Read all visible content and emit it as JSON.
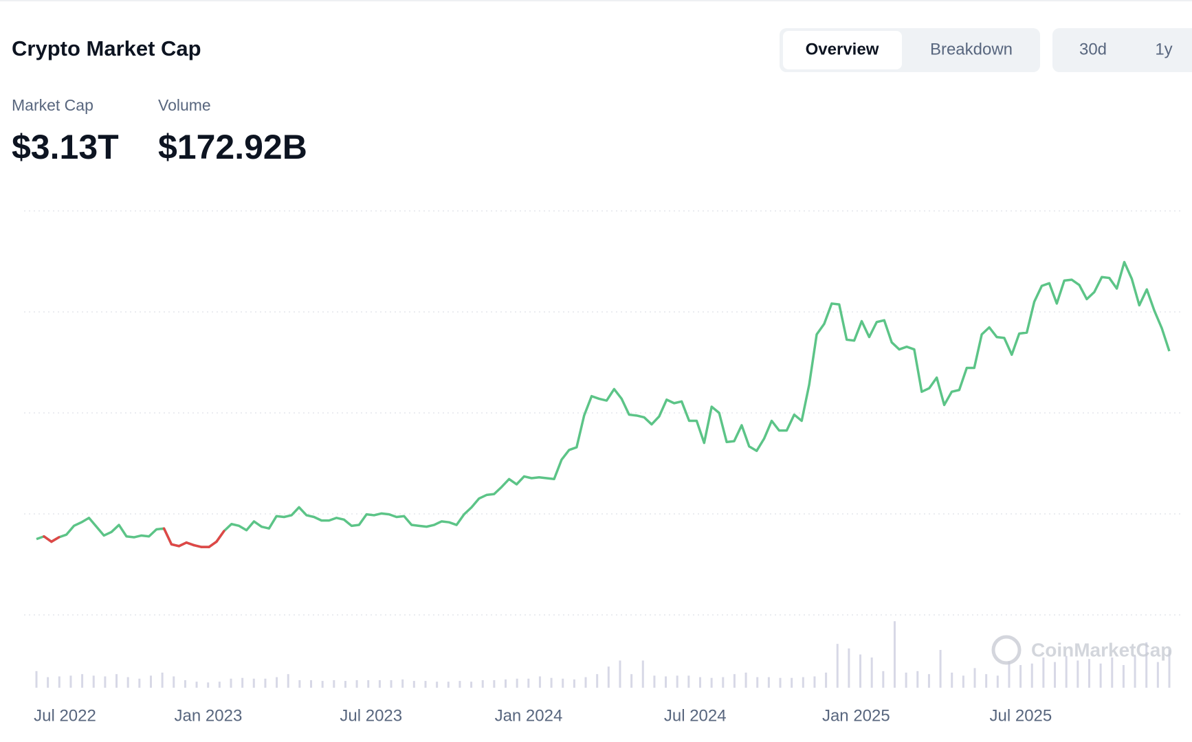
{
  "header": {
    "title": "Crypto Market Cap",
    "tabs": [
      "Overview",
      "Breakdown"
    ],
    "ranges": [
      "30d",
      "1y"
    ]
  },
  "stats": [
    {
      "label": "Market Cap",
      "value": "$3.13T"
    },
    {
      "label": "Volume",
      "value": "$172.92B"
    }
  ],
  "chart_data": {
    "type": "line",
    "watermark": "CoinMarketCap",
    "values": [
      1.0,
      1.03,
      0.97,
      1.02,
      1.05,
      1.15,
      1.19,
      1.24,
      1.14,
      1.04,
      1.08,
      1.16,
      1.03,
      1.02,
      1.04,
      1.03,
      1.11,
      1.12,
      0.94,
      0.92,
      0.96,
      0.93,
      0.91,
      0.91,
      0.97,
      1.09,
      1.17,
      1.15,
      1.1,
      1.2,
      1.14,
      1.12,
      1.26,
      1.25,
      1.27,
      1.36,
      1.27,
      1.25,
      1.21,
      1.21,
      1.24,
      1.22,
      1.15,
      1.16,
      1.28,
      1.27,
      1.29,
      1.28,
      1.25,
      1.26,
      1.16,
      1.15,
      1.14,
      1.16,
      1.2,
      1.19,
      1.16,
      1.28,
      1.36,
      1.46,
      1.5,
      1.51,
      1.59,
      1.68,
      1.62,
      1.71,
      1.69,
      1.7,
      1.69,
      1.68,
      1.9,
      2.01,
      2.04,
      2.4,
      2.62,
      2.59,
      2.57,
      2.7,
      2.59,
      2.41,
      2.4,
      2.38,
      2.3,
      2.39,
      2.58,
      2.54,
      2.56,
      2.34,
      2.34,
      2.09,
      2.5,
      2.43,
      2.1,
      2.11,
      2.29,
      2.05,
      2.0,
      2.14,
      2.34,
      2.23,
      2.23,
      2.41,
      2.34,
      2.75,
      3.32,
      3.44,
      3.67,
      3.66,
      3.26,
      3.25,
      3.47,
      3.29,
      3.46,
      3.48,
      3.23,
      3.15,
      3.18,
      3.15,
      2.67,
      2.71,
      2.83,
      2.52,
      2.67,
      2.69,
      2.94,
      2.94,
      3.32,
      3.4,
      3.29,
      3.28,
      3.09,
      3.33,
      3.34,
      3.69,
      3.87,
      3.9,
      3.67,
      3.93,
      3.94,
      3.88,
      3.72,
      3.8,
      3.97,
      3.96,
      3.84,
      4.14,
      3.95,
      3.65,
      3.83,
      3.59,
      3.39,
      3.13
    ],
    "up_color": "#5cc487",
    "down_color": "#df4747",
    "ylim": [
      0.14,
      4.72
    ],
    "grid": true,
    "xlim": [
      0,
      151
    ],
    "xticks": [
      {
        "value": 3.8,
        "label": "Jul 2022"
      },
      {
        "value": 22.9,
        "label": "Jan 2023"
      },
      {
        "value": 44.6,
        "label": "Jul 2023"
      },
      {
        "value": 65.6,
        "label": "Jan 2024"
      },
      {
        "value": 87.8,
        "label": "Jul 2024"
      },
      {
        "value": 109.25,
        "label": "Jan 2025"
      },
      {
        "value": 131.2,
        "label": "Jul 2025"
      }
    ],
    "volume_values": [
      110,
      70,
      75,
      80,
      90,
      80,
      75,
      90,
      70,
      60,
      80,
      100,
      75,
      50,
      40,
      35,
      40,
      60,
      65,
      60,
      60,
      70,
      90,
      50,
      50,
      45,
      50,
      45,
      50,
      50,
      50,
      50,
      55,
      45,
      45,
      40,
      40,
      45,
      40,
      50,
      50,
      55,
      60,
      60,
      75,
      65,
      60,
      55,
      70,
      90,
      140,
      180,
      90,
      180,
      80,
      75,
      80,
      80,
      70,
      65,
      70,
      90,
      100,
      70,
      70,
      65,
      65,
      70,
      75,
      100,
      290,
      260,
      220,
      200,
      110,
      440,
      100,
      110,
      90,
      250,
      100,
      80,
      130,
      90,
      80,
      175,
      150,
      160,
      200,
      170,
      210,
      180,
      190,
      160,
      200,
      150,
      210,
      300,
      170,
      250
    ],
    "volume_color": "#d7d8e6",
    "volume_lim": [
      0,
      500
    ]
  }
}
